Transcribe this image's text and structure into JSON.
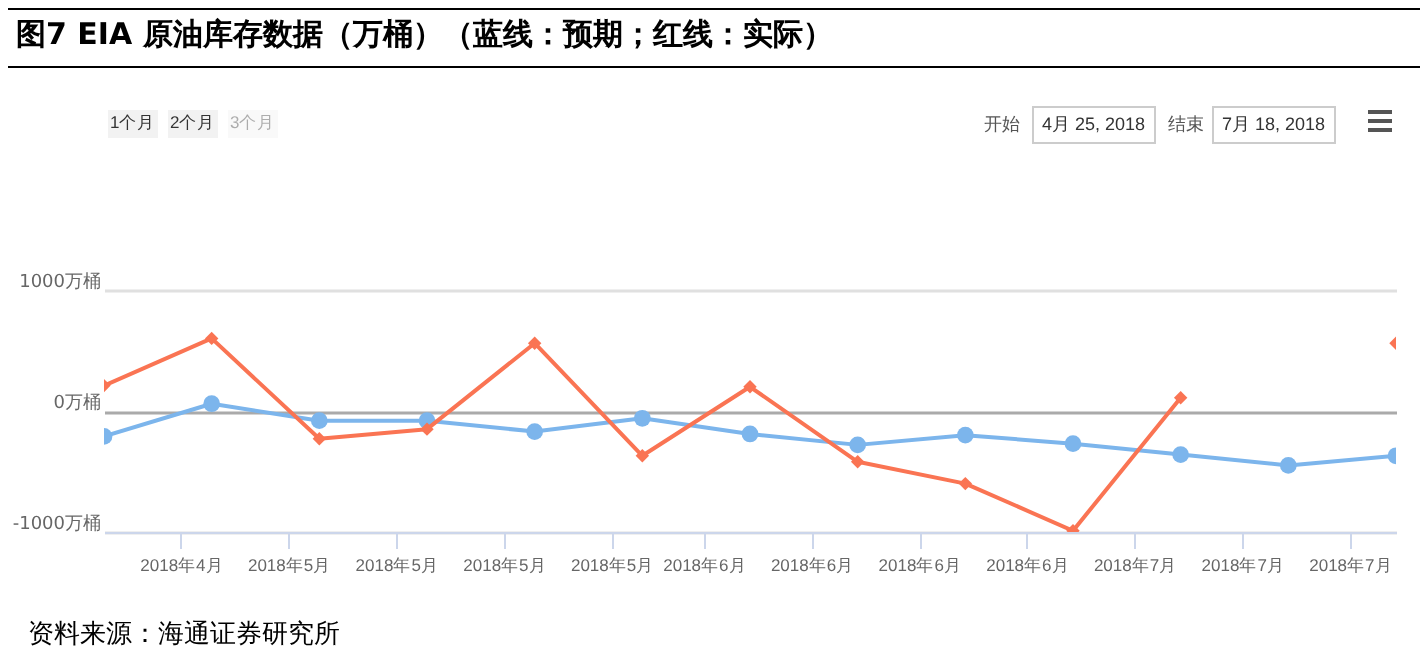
{
  "chart_data": {
    "type": "line",
    "title": "图7  EIA 原油库存数据（万桶）（蓝线：预期；红线：实际）",
    "x": [
      "2018-04-25",
      "2018-05-02",
      "2018-05-09",
      "2018-05-16",
      "2018-05-23",
      "2018-05-30",
      "2018-06-06",
      "2018-06-13",
      "2018-06-20",
      "2018-06-27",
      "2018-07-04",
      "2018-07-11",
      "2018-07-18"
    ],
    "series": [
      {
        "color": "#7cb5ec",
        "marker": "circle",
        "values": [
          -210,
          60,
          -80,
          -80,
          -170,
          -60,
          -190,
          -280,
          -200,
          -270,
          -360,
          -450,
          -370
        ]
      },
      {
        "color": "#fa7453",
        "marker": "diamond",
        "values": [
          210,
          600,
          -230,
          -150,
          560,
          -370,
          200,
          -420,
          -600,
          -990,
          110,
          null,
          560
        ]
      }
    ],
    "xlim": [
      "2018-04-25",
      "2018-07-18"
    ],
    "xticks": [
      {
        "value": "2018-04-30",
        "label": "2018年4月"
      },
      {
        "value": "2018-05-07",
        "label": "2018年5月"
      },
      {
        "value": "2018-05-14",
        "label": "2018年5月"
      },
      {
        "value": "2018-05-21",
        "label": "2018年5月"
      },
      {
        "value": "2018-05-28",
        "label": "2018年5月"
      },
      {
        "value": "2018-06-03",
        "label": "2018年6月"
      },
      {
        "value": "2018-06-10",
        "label": "2018年6月"
      },
      {
        "value": "2018-06-17",
        "label": "2018年6月"
      },
      {
        "value": "2018-06-24",
        "label": "2018年6月"
      },
      {
        "value": "2018-07-01",
        "label": "2018年7月"
      },
      {
        "value": "2018-07-08",
        "label": "2018年7月"
      },
      {
        "value": "2018-07-15",
        "label": "2018年7月"
      }
    ],
    "ylim": [
      -1000,
      1000
    ],
    "yticks": [
      {
        "value": -1000,
        "label": "-1000万桶"
      },
      {
        "value": 0,
        "label": "0万桶"
      },
      {
        "value": 1000,
        "label": "1000万桶"
      }
    ],
    "grid": "y",
    "line_style": "solid",
    "annotations": [
      "1个月",
      "2个月",
      "3个月",
      "开始",
      "4月 25, 2018",
      "结束",
      "7月 18, 2018",
      "资料来源：海通证券研究所"
    ]
  }
}
